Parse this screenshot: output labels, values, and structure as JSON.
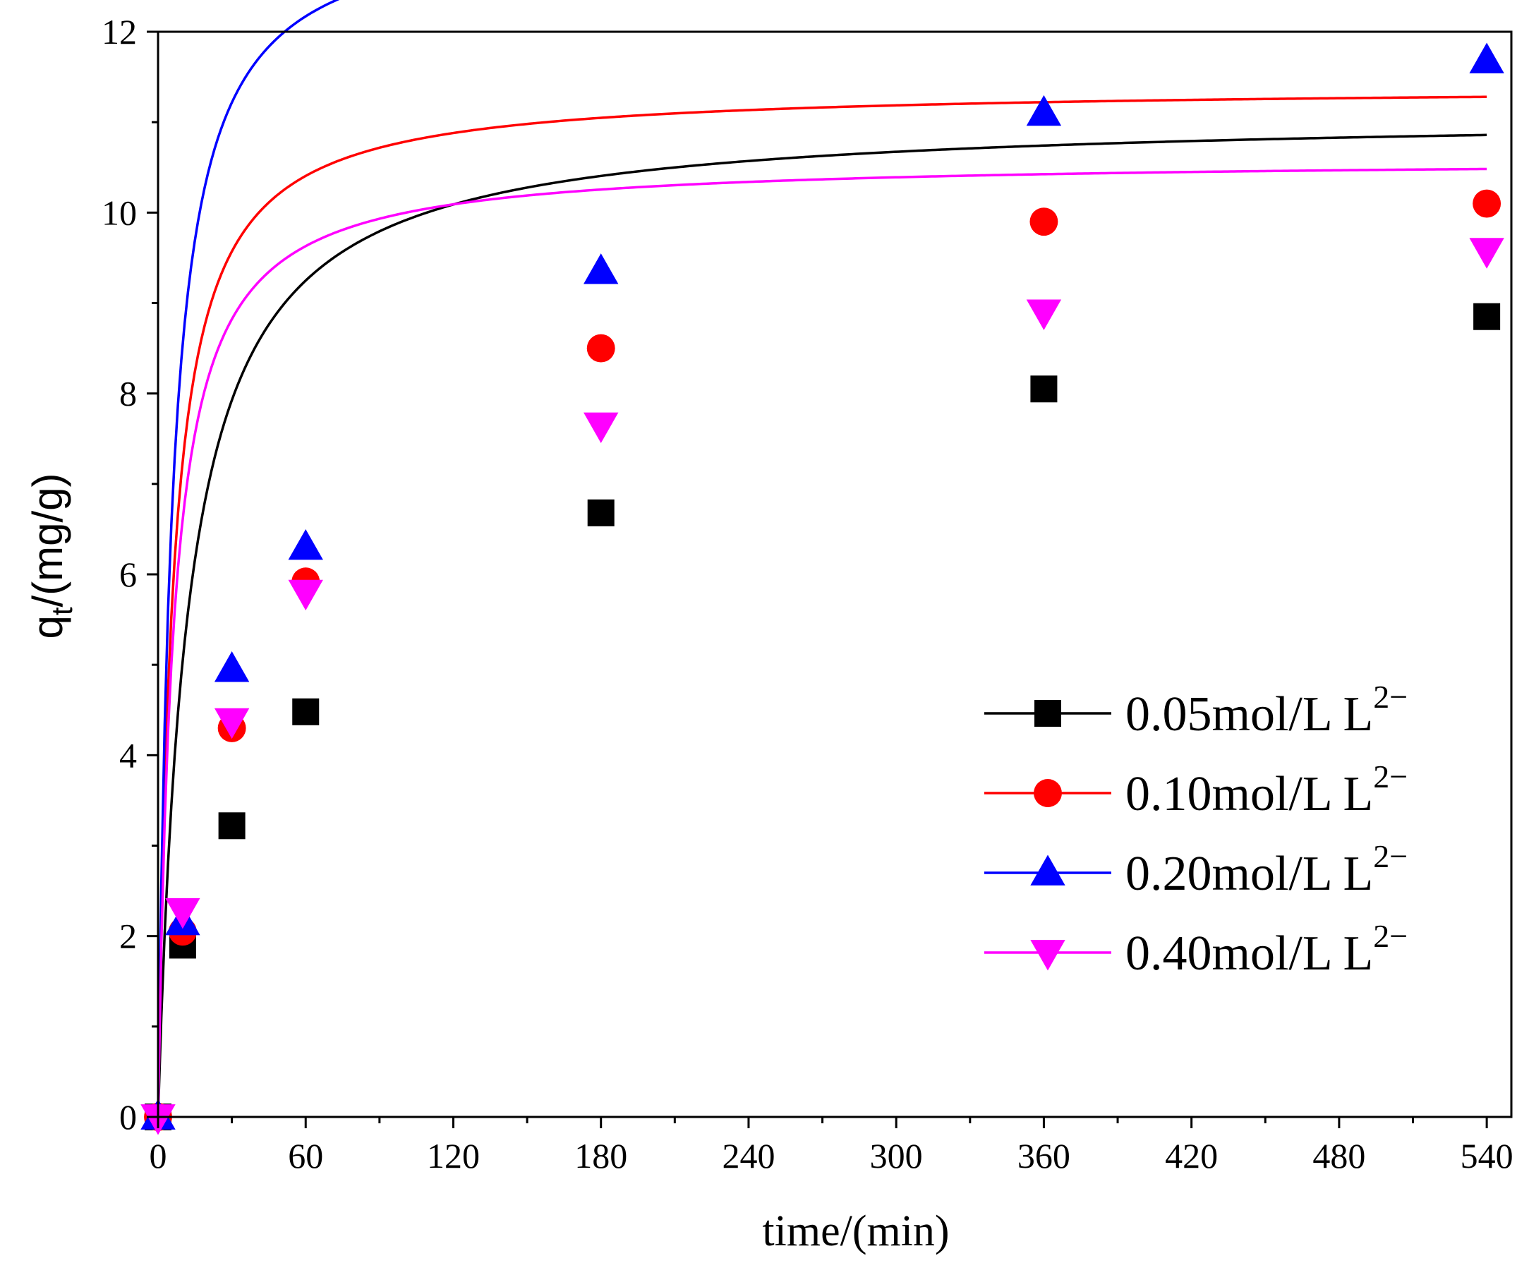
{
  "chart_data": {
    "type": "scatter",
    "title": "",
    "xlabel": "time/(min)",
    "ylabel": {
      "base": "q",
      "sub": "t",
      "rest": "/(mg/g)"
    },
    "xlim": [
      0,
      550
    ],
    "ylim": [
      0,
      12
    ],
    "xticks": [
      0,
      60,
      120,
      180,
      240,
      300,
      360,
      420,
      480,
      540
    ],
    "yticks": [
      0,
      2,
      4,
      6,
      8,
      10,
      12
    ],
    "grid": false,
    "legend_position": "bottom-right",
    "x": [
      0,
      10,
      30,
      60,
      180,
      360,
      540
    ],
    "series": [
      {
        "name": "0.05mol/L L",
        "superscript": "2−",
        "color": "#000000",
        "marker": "square",
        "values": [
          0,
          1.9,
          3.22,
          4.48,
          6.68,
          8.05,
          8.85
        ],
        "fit": {
          "qe": 11.1,
          "k": 0.0075
        }
      },
      {
        "name": "0.10mol/L L",
        "superscript": "2−",
        "color": "#ff0000",
        "marker": "circle",
        "values": [
          0,
          2.05,
          4.3,
          5.92,
          8.5,
          9.9,
          10.1
        ],
        "fit": {
          "qe": 11.4,
          "k": 0.0153
        }
      },
      {
        "name": "0.20mol/L L",
        "superscript": "2−",
        "color": "#0000ff",
        "marker": "triangle-up",
        "values": [
          0,
          2.15,
          4.95,
          6.3,
          9.35,
          11.1,
          11.68
        ],
        "fit": {
          "qe": 13.3,
          "k": 0.0135
        }
      },
      {
        "name": "0.40mol/L L",
        "superscript": "2−",
        "color": "#ff00ff",
        "marker": "triangle-down",
        "values": [
          0,
          2.28,
          4.38,
          5.8,
          7.65,
          8.9,
          9.58
        ],
        "fit": {
          "qe": 10.6,
          "k": 0.0156
        }
      }
    ]
  }
}
